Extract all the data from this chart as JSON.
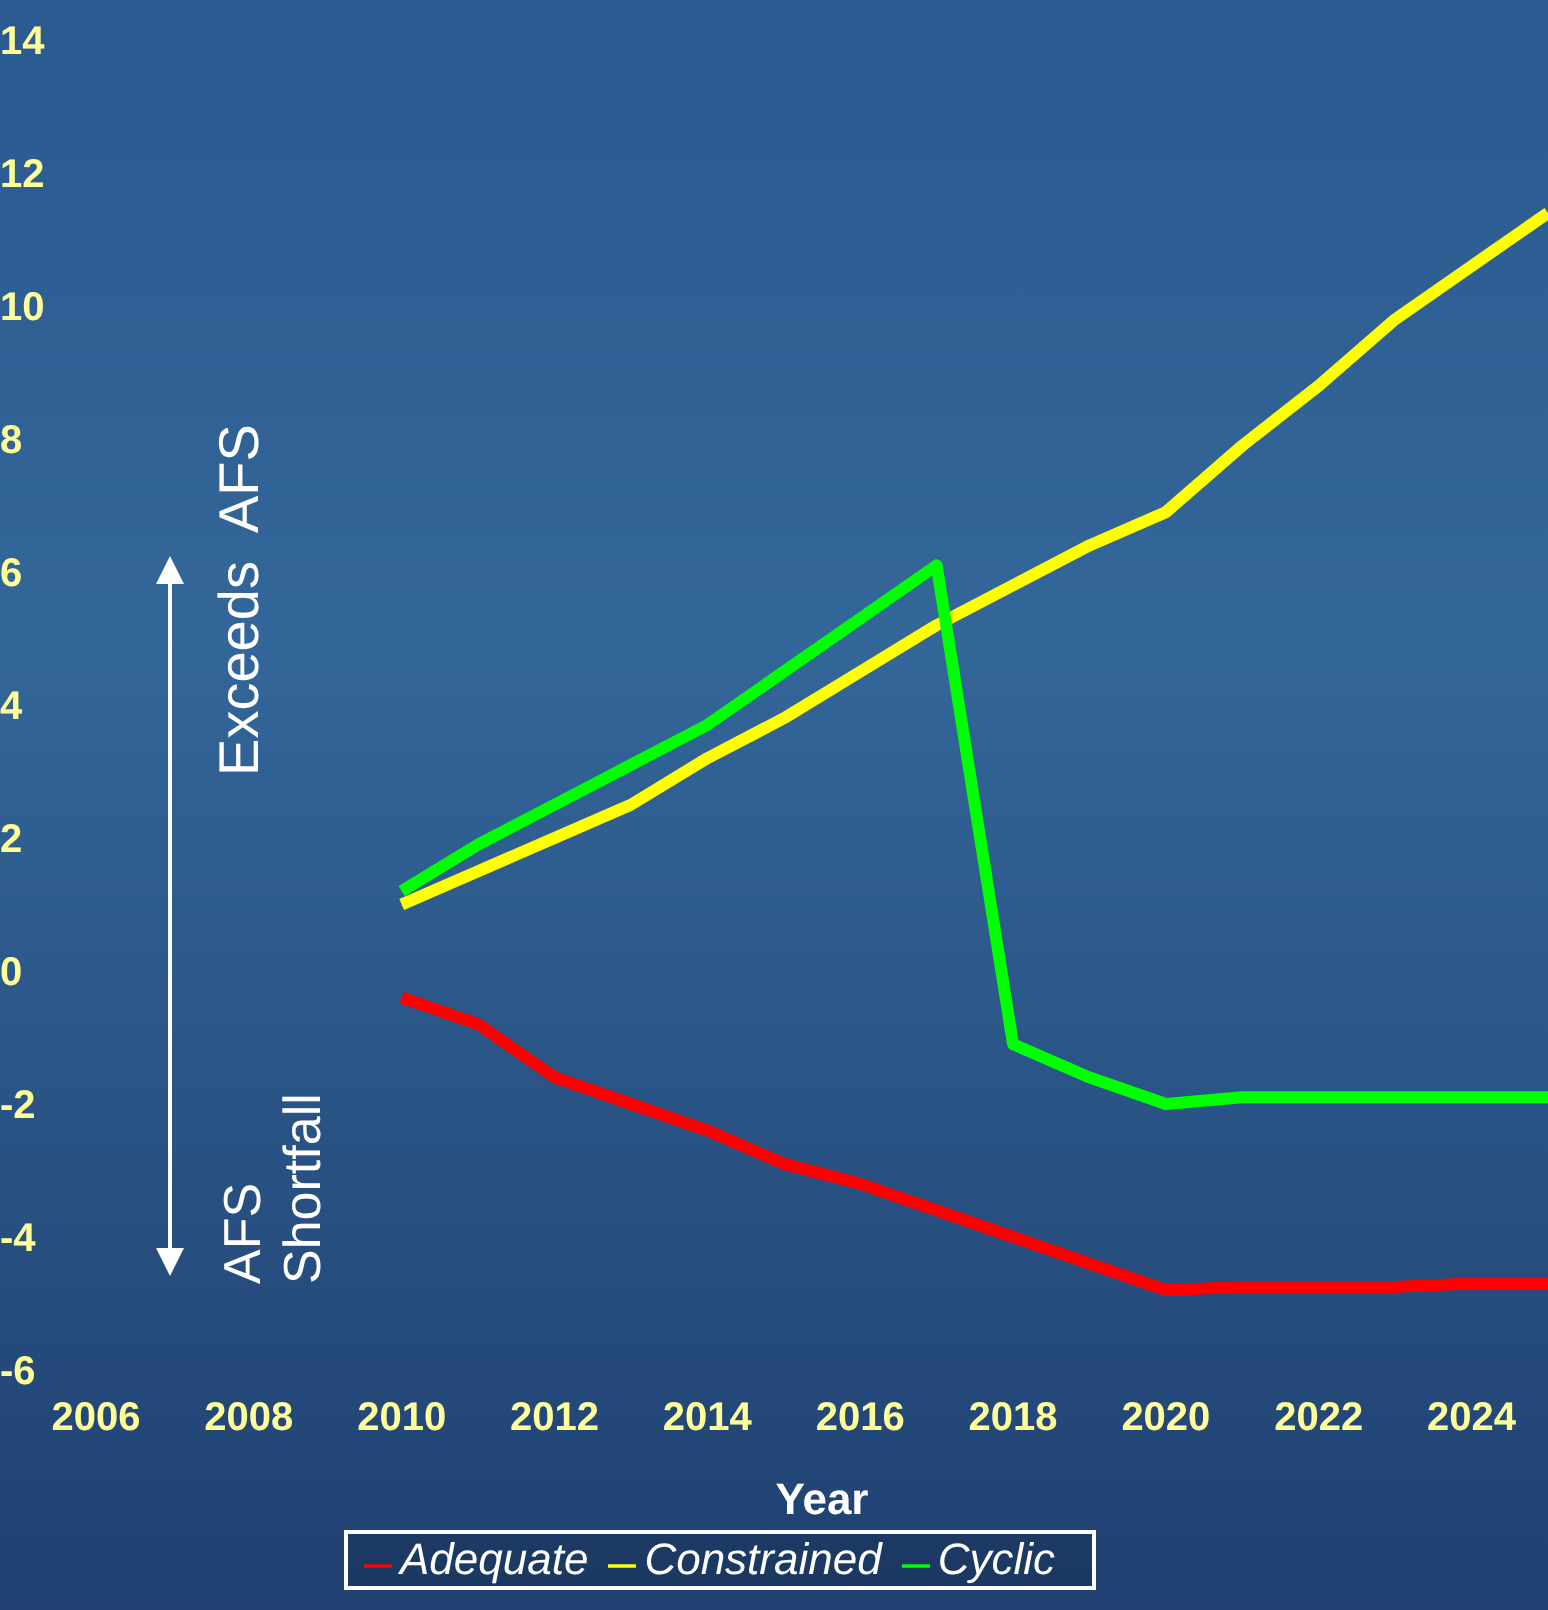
{
  "chart_data": {
    "type": "line",
    "xlabel": "Year",
    "x": [
      2010,
      2011,
      2012,
      2013,
      2014,
      2015,
      2016,
      2017,
      2018,
      2019,
      2020,
      2021,
      2022,
      2023,
      2024,
      2025
    ],
    "series": [
      {
        "name": "Adequate",
        "color": "#ff0000",
        "values": [
          -0.4,
          -0.8,
          -1.6,
          -2.0,
          -2.4,
          -2.9,
          -3.2,
          -3.6,
          -4.0,
          -4.4,
          -4.8,
          -4.75,
          -4.75,
          -4.75,
          -4.7,
          -4.7
        ]
      },
      {
        "name": "Constrained",
        "color": "#ffff00",
        "values": [
          1.0,
          1.5,
          2.0,
          2.5,
          3.2,
          3.8,
          4.5,
          5.2,
          5.8,
          6.4,
          6.9,
          7.9,
          8.8,
          9.8,
          10.6,
          11.4
        ]
      },
      {
        "name": "Cyclic",
        "color": "#00ff00",
        "values": [
          1.2,
          1.9,
          2.5,
          3.1,
          3.7,
          4.5,
          5.3,
          6.1,
          -1.1,
          -1.6,
          -2.0,
          -1.9,
          -1.9,
          -1.9,
          -1.9,
          -1.9
        ]
      }
    ],
    "xlim": [
      2006,
      2025
    ],
    "xticks": [
      2006,
      2008,
      2010,
      2012,
      2014,
      2016,
      2018,
      2020,
      2022,
      2024
    ],
    "ylim": [
      -6,
      14
    ],
    "yticks": [
      -6,
      -4,
      -2,
      0,
      2,
      4,
      6,
      8,
      10,
      12,
      14
    ],
    "annotations": [
      "Exceeds  AFS",
      "AFS Shortfall"
    ],
    "legend": "bottom",
    "grid": false,
    "marker": "none",
    "line_style": "solid"
  }
}
